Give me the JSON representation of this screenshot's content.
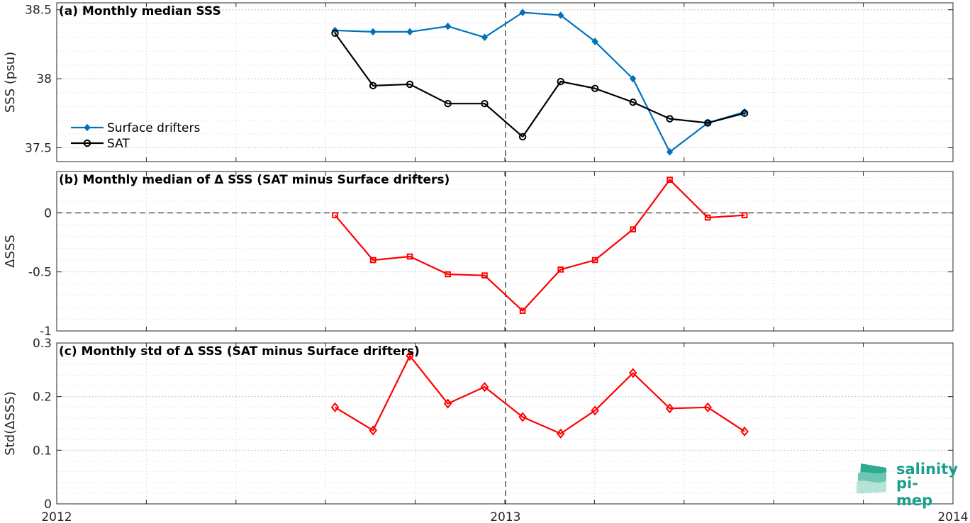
{
  "chart_data": [
    {
      "type": "line",
      "title": "(a) Monthly median SSS",
      "ylabel": "SSS (psu)",
      "xlim": [
        "2012-01-01",
        "2014-01-01"
      ],
      "ylim": [
        37.4,
        38.55
      ],
      "yticks": [
        37.5,
        38,
        38.5
      ],
      "ytick_labels": [
        "37.5",
        "38",
        "38.5"
      ],
      "grid": true,
      "legend_position": "left",
      "series": [
        {
          "name": "Surface drifters",
          "color": "#0072BD",
          "marker": "filled-diamond",
          "x": [
            "2012-08-15",
            "2012-09-15",
            "2012-10-15",
            "2012-11-15",
            "2012-12-15",
            "2013-01-15",
            "2013-02-15",
            "2013-03-15",
            "2013-04-15",
            "2013-05-15",
            "2013-06-15",
            "2013-07-15"
          ],
          "y": [
            38.35,
            38.34,
            38.34,
            38.38,
            38.3,
            38.48,
            38.46,
            38.27,
            38.0,
            37.47,
            37.68,
            37.76
          ]
        },
        {
          "name": "SAT",
          "color": "#000000",
          "marker": "open-circle",
          "x": [
            "2012-08-15",
            "2012-09-15",
            "2012-10-15",
            "2012-11-15",
            "2012-12-15",
            "2013-01-15",
            "2013-02-15",
            "2013-03-15",
            "2013-04-15",
            "2013-05-15",
            "2013-06-15",
            "2013-07-15"
          ],
          "y": [
            38.33,
            37.95,
            37.96,
            37.82,
            37.82,
            37.58,
            37.98,
            37.93,
            37.83,
            37.71,
            37.68,
            37.75
          ]
        }
      ]
    },
    {
      "type": "line",
      "title": "(b) Monthly median of Δ SSS (SAT minus Surface drifters)",
      "ylabel": "ΔSSS",
      "xlim": [
        "2012-01-01",
        "2014-01-01"
      ],
      "ylim": [
        -1,
        0.35
      ],
      "yticks": [
        -1,
        -0.5,
        0
      ],
      "ytick_labels": [
        "-1",
        "-0.5",
        "0"
      ],
      "grid": true,
      "reference_line": 0,
      "series": [
        {
          "color": "#FF0000",
          "marker": "open-square",
          "x": [
            "2012-08-15",
            "2012-09-15",
            "2012-10-15",
            "2012-11-15",
            "2012-12-15",
            "2013-01-15",
            "2013-02-15",
            "2013-03-15",
            "2013-04-15",
            "2013-05-15",
            "2013-06-15",
            "2013-07-15"
          ],
          "y": [
            -0.02,
            -0.4,
            -0.37,
            -0.52,
            -0.53,
            -0.83,
            -0.48,
            -0.4,
            -0.14,
            0.28,
            -0.04,
            -0.02
          ]
        }
      ]
    },
    {
      "type": "line",
      "title": "(c) Monthly std of Δ SSS (SAT minus Surface drifters)",
      "ylabel": "Std(ΔSSS)",
      "xlim": [
        "2012-01-01",
        "2014-01-01"
      ],
      "ylim": [
        0,
        0.3
      ],
      "yticks": [
        0,
        0.1,
        0.2,
        0.3
      ],
      "ytick_labels": [
        "0",
        "0.1",
        "0.2",
        "0.3"
      ],
      "xticks": [
        "2012-01-01",
        "2013-01-01",
        "2014-01-01"
      ],
      "xtick_labels": [
        "2012",
        "2013",
        "2014"
      ],
      "grid": true,
      "series": [
        {
          "color": "#FF0000",
          "marker": "open-diamond",
          "x": [
            "2012-08-15",
            "2012-09-15",
            "2012-10-15",
            "2012-11-15",
            "2012-12-15",
            "2013-01-15",
            "2013-02-15",
            "2013-03-15",
            "2013-04-15",
            "2013-05-15",
            "2013-06-15",
            "2013-07-15"
          ],
          "y": [
            0.18,
            0.137,
            0.276,
            0.187,
            0.218,
            0.162,
            0.131,
            0.174,
            0.244,
            0.178,
            0.18,
            0.135
          ]
        }
      ]
    }
  ],
  "vertical_marker_date": "2013-01-01",
  "logo": {
    "line1": "salinity",
    "line2": "pi-mep"
  }
}
